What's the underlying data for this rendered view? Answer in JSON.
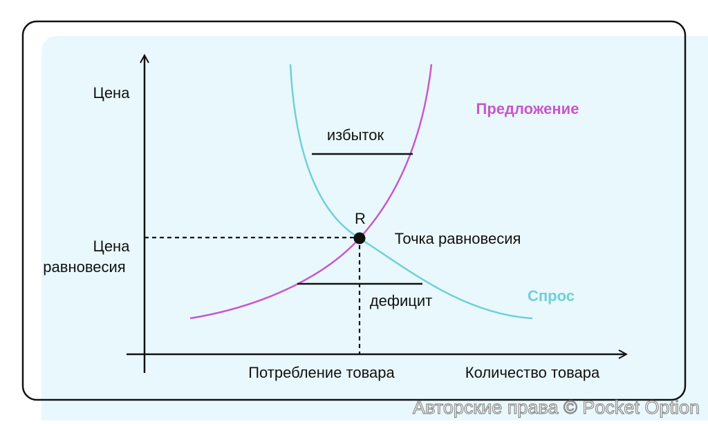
{
  "axes": {
    "y_label": "Цена",
    "x_label": "Количество товара"
  },
  "curves": {
    "supply": "Предложение",
    "demand": "Спрос"
  },
  "labels": {
    "surplus": "избыток",
    "deficit": "дефицит",
    "point": "R",
    "equilibrium_point": "Точка равновесия",
    "equilibrium_price": [
      "Цена",
      "равновесия"
    ],
    "consumption": "Потребление товара"
  },
  "watermark": "Авторские права © Pocket Option"
}
